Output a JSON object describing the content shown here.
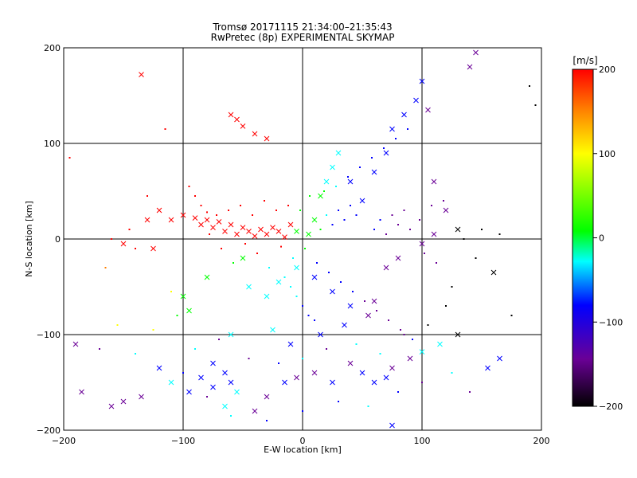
{
  "chart_data": {
    "type": "scatter",
    "title": "Tromsø 20171115 21:34:00–21:35:43",
    "subtitle": "RwPretec (8p) EXPERIMENTAL SKYMAP",
    "xlabel": "E-W location [km]",
    "ylabel": "N-S location [km]",
    "xlim": [
      -200,
      200
    ],
    "ylim": [
      -200,
      200
    ],
    "xticks": [
      -200,
      -100,
      0,
      100,
      200
    ],
    "yticks": [
      -200,
      -100,
      0,
      100,
      200
    ],
    "x_tick_labels": [
      "−200",
      "−100",
      "0",
      "100",
      "200"
    ],
    "y_tick_labels": [
      "−200",
      "−100",
      "0",
      "100",
      "200"
    ],
    "grid": true,
    "colorbar": {
      "label": "[m/s]",
      "range": [
        -200,
        200
      ],
      "ticks": [
        200,
        100,
        0,
        -100,
        -200
      ],
      "tick_labels": [
        "200",
        "100",
        "0",
        "−100",
        "−200"
      ],
      "colors": [
        "#000000",
        "#6a0096",
        "#0000ff",
        "#00ffff",
        "#00ff00",
        "#ffff00",
        "#ff8000",
        "#ff0000"
      ]
    },
    "series": [
      {
        "marker": "x",
        "points": [
          [
            -135,
            172
          ],
          [
            -60,
            130
          ],
          [
            -55,
            125
          ],
          [
            -50,
            118
          ],
          [
            -40,
            110
          ],
          [
            -30,
            105
          ],
          [
            -120,
            30
          ],
          [
            -110,
            20
          ],
          [
            -100,
            25
          ],
          [
            -90,
            22
          ],
          [
            -85,
            15
          ],
          [
            -80,
            20
          ],
          [
            -75,
            12
          ],
          [
            -70,
            18
          ],
          [
            -65,
            8
          ],
          [
            -60,
            15
          ],
          [
            -55,
            5
          ],
          [
            -50,
            12
          ],
          [
            -45,
            8
          ],
          [
            -40,
            3
          ],
          [
            -35,
            10
          ],
          [
            -30,
            5
          ],
          [
            -25,
            12
          ],
          [
            -20,
            8
          ],
          [
            -15,
            2
          ],
          [
            -10,
            15
          ],
          [
            -5,
            8
          ],
          [
            5,
            5
          ],
          [
            10,
            20
          ],
          [
            15,
            45
          ],
          [
            20,
            60
          ],
          [
            25,
            75
          ],
          [
            30,
            90
          ],
          [
            40,
            60
          ],
          [
            50,
            40
          ],
          [
            60,
            70
          ],
          [
            70,
            90
          ],
          [
            75,
            115
          ],
          [
            85,
            130
          ],
          [
            95,
            145
          ],
          [
            100,
            165
          ],
          [
            105,
            135
          ],
          [
            110,
            60
          ],
          [
            120,
            30
          ],
          [
            130,
            10
          ],
          [
            160,
            -35
          ],
          [
            165,
            -125
          ],
          [
            155,
            -135
          ],
          [
            130,
            -100
          ],
          [
            115,
            -110
          ],
          [
            100,
            -118
          ],
          [
            90,
            -125
          ],
          [
            75,
            -135
          ],
          [
            70,
            -145
          ],
          [
            60,
            -150
          ],
          [
            50,
            -140
          ],
          [
            40,
            -130
          ],
          [
            25,
            -150
          ],
          [
            10,
            -140
          ],
          [
            -5,
            -145
          ],
          [
            -15,
            -150
          ],
          [
            -30,
            -165
          ],
          [
            -40,
            -180
          ],
          [
            -55,
            -160
          ],
          [
            -60,
            -150
          ],
          [
            -65,
            -140
          ],
          [
            -75,
            -130
          ],
          [
            -85,
            -145
          ],
          [
            -95,
            -160
          ],
          [
            -110,
            -150
          ],
          [
            -120,
            -135
          ],
          [
            -135,
            -165
          ],
          [
            -150,
            -170
          ],
          [
            -160,
            -175
          ],
          [
            -185,
            -160
          ],
          [
            -190,
            -110
          ],
          [
            -100,
            -60
          ],
          [
            -95,
            -75
          ],
          [
            -80,
            -40
          ],
          [
            -50,
            -20
          ],
          [
            -45,
            -50
          ],
          [
            -30,
            -60
          ],
          [
            -20,
            -45
          ],
          [
            -5,
            -30
          ],
          [
            10,
            -40
          ],
          [
            25,
            -55
          ],
          [
            40,
            -70
          ],
          [
            55,
            -80
          ],
          [
            70,
            -30
          ],
          [
            80,
            -20
          ],
          [
            100,
            -5
          ],
          [
            110,
            5
          ],
          [
            140,
            180
          ],
          [
            145,
            195
          ],
          [
            60,
            -65
          ],
          [
            35,
            -90
          ],
          [
            15,
            -100
          ],
          [
            -10,
            -110
          ],
          [
            -25,
            -95
          ],
          [
            -60,
            -100
          ],
          [
            -150,
            -5
          ],
          [
            -125,
            -10
          ],
          [
            -130,
            20
          ],
          [
            -75,
            -155
          ],
          [
            -65,
            -175
          ],
          [
            75,
            -195
          ]
        ]
      },
      {
        "marker": "dot",
        "points": [
          [
            -195,
            85
          ],
          [
            -165,
            -30
          ],
          [
            -160,
            0
          ],
          [
            -145,
            10
          ],
          [
            -140,
            -10
          ],
          [
            -130,
            45
          ],
          [
            -115,
            115
          ],
          [
            -110,
            -55
          ],
          [
            -105,
            -80
          ],
          [
            -95,
            55
          ],
          [
            -90,
            45
          ],
          [
            -85,
            35
          ],
          [
            -80,
            28
          ],
          [
            -78,
            5
          ],
          [
            -72,
            25
          ],
          [
            -68,
            -10
          ],
          [
            -62,
            30
          ],
          [
            -58,
            -25
          ],
          [
            -52,
            35
          ],
          [
            -48,
            -5
          ],
          [
            -42,
            25
          ],
          [
            -38,
            -15
          ],
          [
            -32,
            40
          ],
          [
            -28,
            -30
          ],
          [
            -22,
            30
          ],
          [
            -18,
            -8
          ],
          [
            -12,
            35
          ],
          [
            -8,
            -20
          ],
          [
            -2,
            30
          ],
          [
            2,
            -10
          ],
          [
            6,
            45
          ],
          [
            12,
            -25
          ],
          [
            18,
            50
          ],
          [
            22,
            -35
          ],
          [
            28,
            55
          ],
          [
            32,
            -45
          ],
          [
            38,
            65
          ],
          [
            42,
            -55
          ],
          [
            48,
            75
          ],
          [
            52,
            -65
          ],
          [
            58,
            85
          ],
          [
            62,
            -75
          ],
          [
            68,
            95
          ],
          [
            72,
            -85
          ],
          [
            78,
            105
          ],
          [
            82,
            -95
          ],
          [
            88,
            115
          ],
          [
            92,
            -105
          ],
          [
            98,
            20
          ],
          [
            102,
            -15
          ],
          [
            108,
            35
          ],
          [
            112,
            -25
          ],
          [
            118,
            40
          ],
          [
            125,
            -50
          ],
          [
            135,
            0
          ],
          [
            145,
            -20
          ],
          [
            150,
            10
          ],
          [
            165,
            5
          ],
          [
            175,
            -80
          ],
          [
            190,
            160
          ],
          [
            195,
            140
          ],
          [
            -170,
            -115
          ],
          [
            -155,
            -90
          ],
          [
            -140,
            -120
          ],
          [
            -125,
            -95
          ],
          [
            -90,
            -115
          ],
          [
            -70,
            -105
          ],
          [
            -45,
            -125
          ],
          [
            -20,
            -130
          ],
          [
            0,
            -125
          ],
          [
            20,
            -115
          ],
          [
            45,
            -110
          ],
          [
            65,
            -120
          ],
          [
            85,
            -100
          ],
          [
            105,
            -90
          ],
          [
            120,
            -70
          ],
          [
            -100,
            -140
          ],
          [
            -80,
            -165
          ],
          [
            -60,
            -185
          ],
          [
            -30,
            -190
          ],
          [
            0,
            -180
          ],
          [
            30,
            -170
          ],
          [
            55,
            -175
          ],
          [
            80,
            -160
          ],
          [
            100,
            -150
          ],
          [
            125,
            -140
          ],
          [
            140,
            -160
          ],
          [
            15,
            10
          ],
          [
            20,
            25
          ],
          [
            25,
            15
          ],
          [
            30,
            30
          ],
          [
            35,
            20
          ],
          [
            40,
            35
          ],
          [
            45,
            25
          ],
          [
            -10,
            -50
          ],
          [
            -5,
            -60
          ],
          [
            0,
            -70
          ],
          [
            5,
            -80
          ],
          [
            10,
            -85
          ],
          [
            -15,
            -40
          ],
          [
            60,
            10
          ],
          [
            65,
            20
          ],
          [
            70,
            5
          ],
          [
            75,
            25
          ],
          [
            80,
            15
          ],
          [
            85,
            30
          ],
          [
            90,
            10
          ]
        ]
      }
    ]
  }
}
